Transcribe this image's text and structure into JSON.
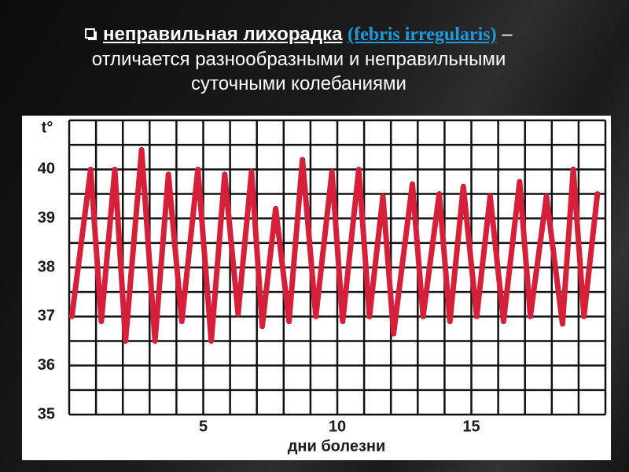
{
  "header": {
    "term": "неправильная лихорадка",
    "latin": "(febris irregularis)",
    "dash": "–",
    "line2": "отличается разнообразными и неправильными",
    "line3": "суточными колебаниями"
  },
  "chart_data": {
    "type": "line",
    "x_label": "дни болезни",
    "y_label": "t°",
    "color": "#d6203a",
    "x": [
      0.1,
      0.8,
      1.2,
      1.7,
      2.1,
      2.7,
      3.2,
      3.7,
      4.2,
      4.8,
      5.3,
      5.8,
      6.3,
      6.8,
      7.2,
      7.7,
      8.2,
      8.7,
      9.2,
      9.8,
      10.2,
      10.8,
      11.2,
      11.7,
      12.1,
      12.8,
      13.2,
      13.8,
      14.2,
      14.7,
      15.2,
      15.7,
      16.2,
      16.8,
      17.2,
      17.8,
      18.4,
      18.8,
      19.2,
      19.7
    ],
    "values": [
      37.0,
      40.0,
      36.9,
      40.0,
      36.5,
      40.4,
      36.5,
      39.9,
      36.9,
      40.0,
      36.5,
      39.9,
      37.05,
      39.95,
      36.8,
      39.2,
      36.9,
      40.2,
      37.0,
      39.95,
      36.9,
      40.0,
      37.0,
      39.45,
      36.65,
      39.7,
      37.0,
      39.5,
      36.9,
      39.65,
      37.0,
      39.45,
      36.9,
      39.75,
      37.0,
      39.45,
      36.85,
      40.0,
      37.0,
      39.5
    ],
    "xlim": [
      0,
      20
    ],
    "ylim": [
      35,
      41
    ],
    "xticks": [
      5,
      10,
      15
    ],
    "yticks": [
      35,
      36,
      37,
      38,
      39,
      40
    ],
    "grid_x": [
      0,
      1,
      2,
      3,
      4,
      5,
      6,
      7,
      8,
      9,
      10,
      11,
      12,
      13,
      14,
      15,
      16,
      17,
      18,
      19,
      20
    ],
    "grid_y": [
      35,
      35.5,
      36,
      36.5,
      37,
      37.5,
      38,
      38.5,
      39,
      39.5,
      40,
      40.5,
      41
    ]
  }
}
